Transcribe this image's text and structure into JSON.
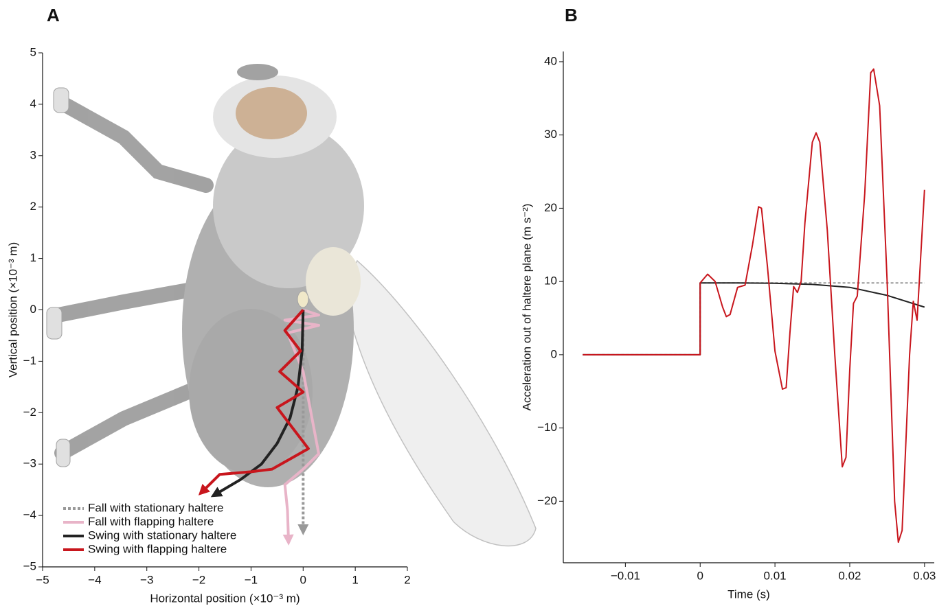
{
  "chart_data": [
    {
      "type": "line",
      "panel": "A",
      "xlabel": "Horizontal position (×10⁻³ m)",
      "ylabel": "Vertical position (×10⁻³ m)",
      "xlim": [
        -5,
        2
      ],
      "ylim": [
        -5,
        5
      ],
      "xticks": [
        {
          "value": -5,
          "label": "−5"
        },
        {
          "value": -4,
          "label": "−4"
        },
        {
          "value": -3,
          "label": "−3"
        },
        {
          "value": -2,
          "label": "−2"
        },
        {
          "value": -1,
          "label": "−1"
        },
        0,
        1,
        2
      ],
      "yticks": [
        {
          "value": -5,
          "label": "−5"
        },
        {
          "value": -4,
          "label": "−4"
        },
        {
          "value": -3,
          "label": "−3"
        },
        {
          "value": -2,
          "label": "−2"
        },
        {
          "value": -1,
          "label": "−1"
        },
        0,
        1,
        2,
        3,
        4,
        5
      ],
      "legend": "lower left",
      "series": [
        {
          "name": "Fall with stationary haltere",
          "color": "#999999",
          "linestyle": "dotted",
          "x": [
            0,
            0
          ],
          "values": [
            0,
            -4.3
          ]
        },
        {
          "name": "Fall with flapping haltere",
          "color": "#e8b4c8",
          "linestyle": "solid",
          "x": [
            0,
            0.3,
            -0.35,
            0.3,
            -0.3,
            0.0,
            0.3,
            0.0,
            -0.35,
            -0.3,
            -0.28
          ],
          "values": [
            0,
            -0.1,
            -0.2,
            -0.3,
            -0.45,
            -1.2,
            -2.8,
            -3.1,
            -3.4,
            -3.9,
            -4.5
          ]
        },
        {
          "name": "Swing with stationary haltere",
          "color": "#222222",
          "linestyle": "solid",
          "x": [
            0,
            -0.02,
            -0.1,
            -0.25,
            -0.5,
            -0.8,
            -1.2,
            -1.7
          ],
          "values": [
            0,
            -0.8,
            -1.5,
            -2.1,
            -2.6,
            -3.0,
            -3.3,
            -3.6
          ]
        },
        {
          "name": "Swing with flapping haltere",
          "color": "#c8161d",
          "linestyle": "solid",
          "x": [
            0,
            -0.35,
            -0.05,
            -0.45,
            0.0,
            -0.5,
            -0.35,
            0.1,
            -0.6,
            -1.0,
            -1.6,
            -1.95
          ],
          "values": [
            0,
            -0.4,
            -0.8,
            -1.2,
            -1.6,
            -1.9,
            -2.1,
            -2.7,
            -3.1,
            -3.15,
            -3.2,
            -3.55
          ]
        }
      ]
    },
    {
      "type": "line",
      "panel": "B",
      "xlabel": "Time (s)",
      "ylabel": "Acceleration out of haltere plane (m s⁻²)",
      "xlim": [
        -0.0183,
        0.0313
      ],
      "ylim": [
        -28.4,
        41.4
      ],
      "xticks": [
        {
          "value": -0.01,
          "label": "−0.01"
        },
        0,
        0.01,
        0.02,
        0.03
      ],
      "yticks": [
        {
          "value": -20,
          "label": "−20"
        },
        {
          "value": -10,
          "label": "−10"
        },
        0,
        10,
        20,
        30,
        40
      ],
      "series": [
        {
          "color": "#999999",
          "linestyle": "dotted",
          "x": [
            -0.0157,
            0,
            0,
            0.03
          ],
          "values": [
            0,
            0,
            9.81,
            9.81
          ]
        },
        {
          "color": "#222222",
          "linestyle": "solid",
          "x": [
            -0.0157,
            0,
            0,
            0.005,
            0.01,
            0.015,
            0.02,
            0.025,
            0.03
          ],
          "values": [
            0,
            0,
            9.8,
            9.8,
            9.75,
            9.6,
            9.2,
            8.1,
            6.5
          ]
        },
        {
          "color": "#c8161d",
          "linestyle": "solid",
          "x": [
            -0.0157,
            0,
            0,
            0.001,
            0.002,
            0.003,
            0.0035,
            0.004,
            0.005,
            0.006,
            0.007,
            0.0078,
            0.0082,
            0.009,
            0.01,
            0.011,
            0.0115,
            0.012,
            0.0125,
            0.013,
            0.0135,
            0.014,
            0.015,
            0.0155,
            0.016,
            0.017,
            0.018,
            0.019,
            0.0195,
            0.02,
            0.0205,
            0.021,
            0.022,
            0.0228,
            0.0232,
            0.024,
            0.025,
            0.026,
            0.0265,
            0.027,
            0.028,
            0.0285,
            0.029,
            0.03
          ],
          "values": [
            0,
            0,
            9.8,
            11,
            10,
            6.5,
            5.2,
            5.5,
            9.2,
            9.5,
            15,
            20.2,
            20,
            12,
            0.5,
            -4.7,
            -4.5,
            3,
            9.3,
            8.5,
            10,
            18,
            29,
            30.3,
            29,
            17,
            0,
            -15.3,
            -14,
            -2,
            7,
            8,
            22,
            38.5,
            39,
            34,
            10,
            -20,
            -25.6,
            -24,
            0,
            7.3,
            4.7,
            22.5
          ]
        }
      ]
    }
  ]
}
